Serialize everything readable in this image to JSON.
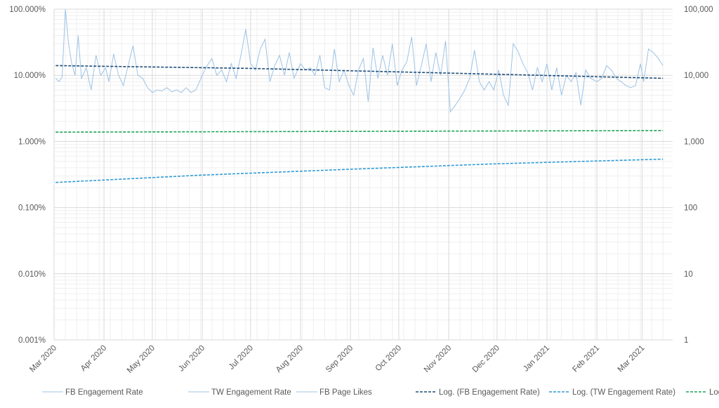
{
  "chart_data": {
    "type": "line",
    "title": "",
    "xlabel": "",
    "ylabel": "",
    "y2label": "",
    "y_scale": "log",
    "y2_scale": "log",
    "ylim": [
      1e-05,
      1
    ],
    "y2lim": [
      1,
      100000
    ],
    "xlim": [
      "2020-03-01",
      "2021-03-20"
    ],
    "grid": true,
    "legend_position": "bottom",
    "y_ticks": [
      {
        "value": 1,
        "label": "100.000%"
      },
      {
        "value": 0.1,
        "label": "10.000%"
      },
      {
        "value": 0.01,
        "label": "1.000%"
      },
      {
        "value": 0.001,
        "label": "0.100%"
      },
      {
        "value": 0.0001,
        "label": "0.010%"
      },
      {
        "value": 1e-05,
        "label": "0.001%"
      }
    ],
    "y2_ticks": [
      {
        "value": 100000,
        "label": "100,000"
      },
      {
        "value": 10000,
        "label": "10,000"
      },
      {
        "value": 1000,
        "label": "1,000"
      },
      {
        "value": 100,
        "label": "100"
      },
      {
        "value": 10,
        "label": "10"
      },
      {
        "value": 1,
        "label": "1"
      }
    ],
    "x_ticks": [
      {
        "date": "2020-03-01",
        "label": "Mar 2020"
      },
      {
        "date": "2020-04-01",
        "label": "Apr 2020"
      },
      {
        "date": "2020-05-01",
        "label": "May 2020"
      },
      {
        "date": "2020-06-01",
        "label": "Jun 2020"
      },
      {
        "date": "2020-07-01",
        "label": "Jul 2020"
      },
      {
        "date": "2020-08-01",
        "label": "Aug 2020"
      },
      {
        "date": "2020-09-01",
        "label": "Sep 2020"
      },
      {
        "date": "2020-10-01",
        "label": "Oct 2020"
      },
      {
        "date": "2020-11-01",
        "label": "Nov 2020"
      },
      {
        "date": "2020-12-01",
        "label": "Dec 2020"
      },
      {
        "date": "2021-01-01",
        "label": "Jan 2021"
      },
      {
        "date": "2021-02-01",
        "label": "Feb 2021"
      },
      {
        "date": "2021-03-01",
        "label": "Mar 2021"
      }
    ],
    "series": [
      {
        "name": "FB Engagement Rate",
        "axis": "left",
        "style": "solid",
        "color": "#9DC3E6",
        "points": [
          [
            "2020-03-02",
            0.09
          ],
          [
            "2020-03-04",
            0.08
          ],
          [
            "2020-03-06",
            0.095
          ],
          [
            "2020-03-08",
            1.0
          ],
          [
            "2020-03-10",
            0.3
          ],
          [
            "2020-03-12",
            0.15
          ],
          [
            "2020-03-14",
            0.1
          ],
          [
            "2020-03-16",
            0.4
          ],
          [
            "2020-03-18",
            0.09
          ],
          [
            "2020-03-21",
            0.13
          ],
          [
            "2020-03-24",
            0.06
          ],
          [
            "2020-03-27",
            0.2
          ],
          [
            "2020-03-30",
            0.1
          ],
          [
            "2020-04-02",
            0.13
          ],
          [
            "2020-04-04",
            0.08
          ],
          [
            "2020-04-07",
            0.21
          ],
          [
            "2020-04-10",
            0.1
          ],
          [
            "2020-04-13",
            0.07
          ],
          [
            "2020-04-16",
            0.14
          ],
          [
            "2020-04-19",
            0.28
          ],
          [
            "2020-04-22",
            0.1
          ],
          [
            "2020-04-25",
            0.09
          ],
          [
            "2020-04-28",
            0.065
          ],
          [
            "2020-05-01",
            0.055
          ],
          [
            "2020-05-04",
            0.06
          ],
          [
            "2020-05-07",
            0.058
          ],
          [
            "2020-05-10",
            0.065
          ],
          [
            "2020-05-13",
            0.056
          ],
          [
            "2020-05-16",
            0.06
          ],
          [
            "2020-05-19",
            0.055
          ],
          [
            "2020-05-22",
            0.065
          ],
          [
            "2020-05-25",
            0.055
          ],
          [
            "2020-05-28",
            0.06
          ],
          [
            "2020-06-01",
            0.1
          ],
          [
            "2020-06-04",
            0.14
          ],
          [
            "2020-06-07",
            0.18
          ],
          [
            "2020-06-10",
            0.1
          ],
          [
            "2020-06-13",
            0.12
          ],
          [
            "2020-06-16",
            0.08
          ],
          [
            "2020-06-19",
            0.15
          ],
          [
            "2020-06-22",
            0.09
          ],
          [
            "2020-06-25",
            0.2
          ],
          [
            "2020-06-28",
            0.5
          ],
          [
            "2020-07-01",
            0.15
          ],
          [
            "2020-07-04",
            0.12
          ],
          [
            "2020-07-07",
            0.25
          ],
          [
            "2020-07-10",
            0.35
          ],
          [
            "2020-07-13",
            0.08
          ],
          [
            "2020-07-16",
            0.14
          ],
          [
            "2020-07-19",
            0.2
          ],
          [
            "2020-07-22",
            0.1
          ],
          [
            "2020-07-25",
            0.22
          ],
          [
            "2020-07-28",
            0.09
          ],
          [
            "2020-08-01",
            0.15
          ],
          [
            "2020-08-04",
            0.12
          ],
          [
            "2020-08-07",
            0.13
          ],
          [
            "2020-08-10",
            0.1
          ],
          [
            "2020-08-13",
            0.2
          ],
          [
            "2020-08-16",
            0.065
          ],
          [
            "2020-08-19",
            0.06
          ],
          [
            "2020-08-22",
            0.25
          ],
          [
            "2020-08-25",
            0.08
          ],
          [
            "2020-08-28",
            0.12
          ],
          [
            "2020-08-31",
            0.07
          ],
          [
            "2020-09-03",
            0.05
          ],
          [
            "2020-09-06",
            0.12
          ],
          [
            "2020-09-09",
            0.18
          ],
          [
            "2020-09-12",
            0.04
          ],
          [
            "2020-09-15",
            0.26
          ],
          [
            "2020-09-18",
            0.09
          ],
          [
            "2020-09-21",
            0.2
          ],
          [
            "2020-09-24",
            0.1
          ],
          [
            "2020-09-27",
            0.3
          ],
          [
            "2020-09-30",
            0.07
          ],
          [
            "2020-10-03",
            0.12
          ],
          [
            "2020-10-06",
            0.16
          ],
          [
            "2020-10-09",
            0.38
          ],
          [
            "2020-10-12",
            0.07
          ],
          [
            "2020-10-15",
            0.14
          ],
          [
            "2020-10-18",
            0.3
          ],
          [
            "2020-10-21",
            0.08
          ],
          [
            "2020-10-24",
            0.22
          ],
          [
            "2020-10-27",
            0.1
          ],
          [
            "2020-10-30",
            0.33
          ],
          [
            "2020-11-02",
            0.028
          ],
          [
            "2020-11-05",
            0.035
          ],
          [
            "2020-11-08",
            0.045
          ],
          [
            "2020-11-11",
            0.06
          ],
          [
            "2020-11-14",
            0.09
          ],
          [
            "2020-11-17",
            0.24
          ],
          [
            "2020-11-20",
            0.08
          ],
          [
            "2020-11-23",
            0.06
          ],
          [
            "2020-11-26",
            0.08
          ],
          [
            "2020-11-29",
            0.06
          ],
          [
            "2020-12-02",
            0.12
          ],
          [
            "2020-12-05",
            0.05
          ],
          [
            "2020-12-08",
            0.035
          ],
          [
            "2020-12-11",
            0.3
          ],
          [
            "2020-12-14",
            0.23
          ],
          [
            "2020-12-17",
            0.15
          ],
          [
            "2020-12-20",
            0.11
          ],
          [
            "2020-12-23",
            0.06
          ],
          [
            "2020-12-26",
            0.13
          ],
          [
            "2020-12-29",
            0.08
          ],
          [
            "2021-01-01",
            0.15
          ],
          [
            "2021-01-04",
            0.06
          ],
          [
            "2021-01-07",
            0.13
          ],
          [
            "2021-01-10",
            0.05
          ],
          [
            "2021-01-13",
            0.1
          ],
          [
            "2021-01-16",
            0.08
          ],
          [
            "2021-01-19",
            0.11
          ],
          [
            "2021-01-22",
            0.035
          ],
          [
            "2021-01-25",
            0.12
          ],
          [
            "2021-01-28",
            0.09
          ],
          [
            "2021-02-01",
            0.08
          ],
          [
            "2021-02-04",
            0.09
          ],
          [
            "2021-02-07",
            0.14
          ],
          [
            "2021-02-10",
            0.12
          ],
          [
            "2021-02-13",
            0.09
          ],
          [
            "2021-02-16",
            0.08
          ],
          [
            "2021-02-19",
            0.07
          ],
          [
            "2021-02-22",
            0.065
          ],
          [
            "2021-02-25",
            0.07
          ],
          [
            "2021-02-28",
            0.15
          ],
          [
            "2021-03-02",
            0.08
          ],
          [
            "2021-03-05",
            0.25
          ],
          [
            "2021-03-08",
            0.22
          ],
          [
            "2021-03-11",
            0.18
          ],
          [
            "2021-03-14",
            0.14
          ]
        ]
      },
      {
        "name": "TW Engagement Rate",
        "axis": "left",
        "style": "solid",
        "color": "#9DC3E6",
        "points": []
      },
      {
        "name": "FB Page Likes",
        "axis": "right",
        "style": "solid",
        "color": "#9DC3E6",
        "points": []
      },
      {
        "name": "Log. (FB Engagement Rate)",
        "axis": "left",
        "style": "dashed",
        "color": "#1F4E79",
        "points": [
          [
            "2020-03-02",
            0.14
          ],
          [
            "2020-07-01",
            0.127
          ],
          [
            "2020-11-01",
            0.108
          ],
          [
            "2021-03-14",
            0.09
          ]
        ]
      },
      {
        "name": "Log. (TW Engagement Rate)",
        "axis": "left",
        "style": "dashed",
        "color": "#2E9BD6",
        "points": [
          [
            "2020-03-02",
            0.0024
          ],
          [
            "2020-06-01",
            0.0031
          ],
          [
            "2020-09-01",
            0.0038
          ],
          [
            "2020-12-01",
            0.0046
          ],
          [
            "2021-03-14",
            0.0054
          ]
        ]
      },
      {
        "name": "Log. ( FB Page Likes )",
        "axis": "right",
        "style": "dashed",
        "color": "#1DA35A",
        "points": [
          [
            "2020-03-02",
            1380
          ],
          [
            "2020-09-01",
            1420
          ],
          [
            "2021-03-14",
            1460
          ]
        ]
      }
    ]
  },
  "legend": [
    {
      "label": "FB Engagement Rate",
      "color": "#9DC3E6",
      "style": "solid"
    },
    {
      "label": "TW Engagement Rate",
      "color": "#9DC3E6",
      "style": "solid"
    },
    {
      "label": "FB Page Likes",
      "color": "#9DC3E6",
      "style": "solid"
    },
    {
      "label": "Log. (FB Engagement Rate)",
      "color": "#1F4E79",
      "style": "dashed"
    },
    {
      "label": "Log. (TW Engagement Rate)",
      "color": "#2E9BD6",
      "style": "dashed"
    },
    {
      "label": "Log. ( FB Page Likes )",
      "color": "#1DA35A",
      "style": "dashed"
    }
  ],
  "colors": {
    "axis_text": "#595959",
    "grid_major": "#D9D9D9",
    "grid_minor": "#EFEFEF"
  }
}
